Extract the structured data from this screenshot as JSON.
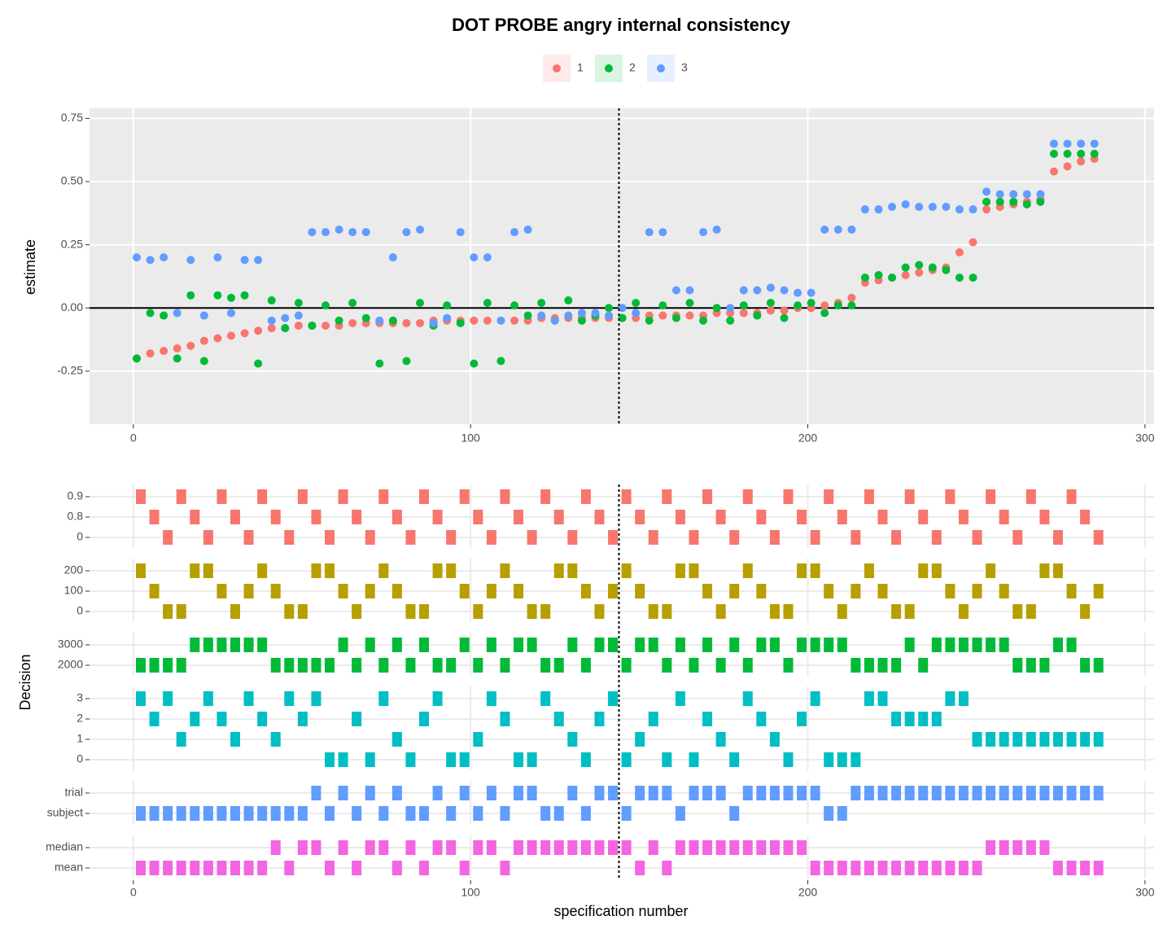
{
  "chart_data": [
    {
      "type": "scatter",
      "title": "DOT PROBE angry internal consistency",
      "legend": "top",
      "ylabel": "estimate",
      "x": [
        1,
        5,
        9,
        13,
        17,
        21,
        25,
        29,
        33,
        37,
        41,
        45,
        49,
        53,
        57,
        61,
        65,
        69,
        73,
        77,
        81,
        85,
        89,
        93,
        97,
        101,
        105,
        109,
        113,
        117,
        121,
        125,
        129,
        133,
        137,
        141,
        145,
        149,
        153,
        157,
        161,
        165,
        169,
        173,
        177,
        181,
        185,
        189,
        193,
        197,
        201,
        205,
        209,
        213,
        217,
        221,
        225,
        229,
        233,
        237,
        241,
        245,
        249,
        253,
        257,
        261,
        265,
        269,
        273,
        277,
        281,
        285
      ],
      "series": [
        {
          "name": "1",
          "color": "#F8766D",
          "values": [
            -0.2,
            -0.18,
            -0.17,
            -0.16,
            -0.15,
            -0.13,
            -0.12,
            -0.11,
            -0.1,
            -0.09,
            -0.08,
            -0.08,
            -0.07,
            -0.07,
            -0.07,
            -0.07,
            -0.06,
            -0.06,
            -0.06,
            -0.06,
            -0.06,
            -0.06,
            -0.05,
            -0.05,
            -0.05,
            -0.05,
            -0.05,
            -0.05,
            -0.05,
            -0.05,
            -0.04,
            -0.04,
            -0.04,
            -0.04,
            -0.04,
            -0.04,
            -0.04,
            -0.04,
            -0.03,
            -0.03,
            -0.03,
            -0.03,
            -0.03,
            -0.02,
            -0.02,
            -0.02,
            -0.02,
            -0.01,
            -0.01,
            0.0,
            0.0,
            0.01,
            0.02,
            0.04,
            0.1,
            0.11,
            0.12,
            0.13,
            0.14,
            0.15,
            0.16,
            0.22,
            0.26,
            0.39,
            0.4,
            0.41,
            0.42,
            0.43,
            0.54,
            0.56,
            0.58,
            0.59
          ]
        },
        {
          "name": "2",
          "color": "#00BA38",
          "values": [
            -0.2,
            -0.02,
            -0.03,
            -0.2,
            0.05,
            -0.21,
            0.05,
            0.04,
            0.05,
            -0.22,
            0.03,
            -0.08,
            0.02,
            -0.07,
            0.01,
            -0.05,
            0.02,
            -0.04,
            -0.22,
            -0.05,
            -0.21,
            0.02,
            -0.07,
            0.01,
            -0.06,
            -0.22,
            0.02,
            -0.21,
            0.01,
            -0.03,
            0.02,
            -0.05,
            0.03,
            -0.05,
            -0.03,
            0.0,
            -0.04,
            0.02,
            -0.05,
            0.01,
            -0.04,
            0.02,
            -0.05,
            0.0,
            -0.05,
            0.01,
            -0.03,
            0.02,
            -0.04,
            0.01,
            0.02,
            -0.02,
            0.01,
            0.01,
            0.12,
            0.13,
            0.12,
            0.16,
            0.17,
            0.16,
            0.15,
            0.12,
            0.12,
            0.42,
            0.42,
            0.42,
            0.41,
            0.42,
            0.61,
            0.61,
            0.61,
            0.61
          ]
        },
        {
          "name": "3",
          "color": "#619CFF",
          "values": [
            0.2,
            0.19,
            0.2,
            -0.02,
            0.19,
            -0.03,
            0.2,
            -0.02,
            0.19,
            0.19,
            -0.05,
            -0.04,
            -0.03,
            0.3,
            0.3,
            0.31,
            0.3,
            0.3,
            -0.05,
            0.2,
            0.3,
            0.31,
            -0.06,
            -0.04,
            0.3,
            0.2,
            0.2,
            -0.05,
            0.3,
            0.31,
            -0.03,
            -0.05,
            -0.03,
            -0.02,
            -0.02,
            -0.03,
            0.0,
            -0.02,
            0.3,
            0.3,
            0.07,
            0.07,
            0.3,
            0.31,
            0.0,
            0.07,
            0.07,
            0.08,
            0.07,
            0.06,
            0.06,
            0.31,
            0.31,
            0.31,
            0.39,
            0.39,
            0.4,
            0.41,
            0.4,
            0.4,
            0.4,
            0.39,
            0.39,
            0.46,
            0.45,
            0.45,
            0.45,
            0.45,
            0.65,
            0.65,
            0.65,
            0.65
          ]
        }
      ],
      "xlim": [
        -13,
        302.7
      ],
      "xticks": [
        0,
        100,
        200,
        300
      ],
      "ylim": [
        -0.46,
        0.79
      ],
      "yticks": [
        {
          "value": -0.25,
          "label": "-0.25"
        },
        {
          "value": 0,
          "label": "0.00"
        },
        {
          "value": 0.25,
          "label": "0.25"
        },
        {
          "value": 0.5,
          "label": "0.50"
        },
        {
          "value": 0.75,
          "label": "0.75"
        }
      ],
      "grid": true,
      "hline": 0,
      "vline": 144
    },
    {
      "type": "tile",
      "ylabel": "Decision",
      "xlabel": "specification number",
      "x": [
        1,
        5,
        9,
        13,
        17,
        21,
        25,
        29,
        33,
        37,
        41,
        45,
        49,
        53,
        57,
        61,
        65,
        69,
        73,
        77,
        81,
        85,
        89,
        93,
        97,
        101,
        105,
        109,
        113,
        117,
        121,
        125,
        129,
        133,
        137,
        141,
        145,
        149,
        153,
        157,
        161,
        165,
        169,
        173,
        177,
        181,
        185,
        189,
        193,
        197,
        201,
        205,
        209,
        213,
        217,
        221,
        225,
        229,
        233,
        237,
        241,
        245,
        249,
        253,
        257,
        261,
        265,
        269,
        273,
        277,
        281,
        285
      ],
      "rows": [
        {
          "levels": [
            "0",
            "0.8",
            "0.9"
          ],
          "color": "#F8766D",
          "values": [
            2,
            1,
            0,
            2,
            1,
            0,
            2,
            1,
            0,
            2,
            1,
            0,
            2,
            1,
            0,
            2,
            1,
            0,
            2,
            1,
            0,
            2,
            1,
            0,
            2,
            1,
            0,
            2,
            1,
            0,
            2,
            1,
            0,
            2,
            1,
            0,
            2,
            1,
            0,
            2,
            1,
            0,
            2,
            1,
            0,
            2,
            1,
            0,
            2,
            1,
            0,
            2,
            1,
            0,
            2,
            1,
            0,
            2,
            1,
            0,
            2,
            1,
            0,
            2,
            1,
            0,
            2,
            1,
            0,
            2,
            1,
            0
          ]
        },
        {
          "levels": [
            "0",
            "100",
            "200"
          ],
          "color": "#B79F00",
          "values": [
            2,
            1,
            0,
            0,
            2,
            2,
            1,
            0,
            1,
            2,
            1,
            0,
            0,
            2,
            2,
            1,
            0,
            1,
            2,
            1,
            0,
            0,
            2,
            2,
            1,
            0,
            1,
            2,
            1,
            0,
            0,
            2,
            2,
            1,
            0,
            1,
            2,
            1,
            0,
            0,
            2,
            2,
            1,
            0,
            1,
            2,
            1,
            0,
            0,
            2,
            2,
            1,
            0,
            1,
            2,
            1,
            0,
            0,
            2,
            2,
            1,
            0,
            1,
            2,
            1,
            0,
            0,
            2,
            2,
            1,
            0,
            1
          ]
        },
        {
          "levels": [
            "2000",
            "3000"
          ],
          "color": "#00BA38",
          "values": [
            0,
            0,
            0,
            0,
            1,
            1,
            1,
            1,
            1,
            1,
            0,
            0,
            0,
            0,
            0,
            1,
            0,
            1,
            0,
            1,
            0,
            1,
            0,
            0,
            1,
            0,
            1,
            0,
            1,
            1,
            0,
            0,
            1,
            0,
            1,
            1,
            0,
            1,
            1,
            0,
            1,
            0,
            1,
            0,
            1,
            0,
            1,
            1,
            0,
            1,
            1,
            1,
            1,
            0,
            0,
            0,
            0,
            1,
            0,
            1,
            1,
            1,
            1,
            1,
            1,
            0,
            0,
            0,
            1,
            1,
            0,
            0
          ]
        },
        {
          "levels": [
            "0",
            "1",
            "2",
            "3"
          ],
          "color": "#00BFC4",
          "values": [
            3,
            2,
            3,
            1,
            2,
            3,
            2,
            1,
            3,
            2,
            1,
            3,
            2,
            3,
            0,
            0,
            2,
            0,
            3,
            1,
            0,
            2,
            3,
            0,
            0,
            1,
            3,
            2,
            0,
            0,
            3,
            2,
            1,
            0,
            2,
            3,
            0,
            1,
            2,
            0,
            3,
            0,
            2,
            1,
            0,
            3,
            2,
            1,
            0,
            2,
            3,
            0,
            0,
            0,
            3,
            3,
            2,
            2,
            2,
            2,
            3,
            3,
            1,
            1,
            1,
            1,
            1,
            1,
            1,
            1,
            1,
            1
          ]
        },
        {
          "levels": [
            "subject",
            "trial"
          ],
          "color": "#619CFF",
          "values": [
            0,
            0,
            0,
            0,
            0,
            0,
            0,
            0,
            0,
            0,
            0,
            0,
            0,
            1,
            0,
            1,
            0,
            1,
            0,
            1,
            0,
            0,
            1,
            0,
            1,
            0,
            1,
            0,
            1,
            1,
            0,
            0,
            1,
            0,
            1,
            1,
            0,
            1,
            1,
            1,
            0,
            1,
            1,
            1,
            0,
            1,
            1,
            1,
            1,
            1,
            1,
            0,
            0,
            1,
            1,
            1,
            1,
            1,
            1,
            1,
            1,
            1,
            1,
            1,
            1,
            1,
            1,
            1,
            1,
            1,
            1,
            1
          ]
        },
        {
          "levels": [
            "mean",
            "median"
          ],
          "color": "#F564E3",
          "values": [
            0,
            0,
            0,
            0,
            0,
            0,
            0,
            0,
            0,
            0,
            1,
            0,
            1,
            1,
            0,
            1,
            0,
            1,
            1,
            0,
            1,
            0,
            1,
            1,
            0,
            1,
            1,
            0,
            1,
            1,
            1,
            1,
            1,
            1,
            1,
            1,
            1,
            0,
            1,
            0,
            1,
            1,
            1,
            1,
            1,
            1,
            1,
            1,
            1,
            1,
            0,
            0,
            0,
            0,
            0,
            0,
            0,
            0,
            0,
            0,
            0,
            0,
            0,
            1,
            1,
            1,
            1,
            1,
            0,
            0,
            0,
            0
          ]
        }
      ],
      "xlim": [
        -13,
        302.7
      ],
      "xticks": [
        0,
        100,
        200,
        300
      ],
      "vline": 144
    }
  ]
}
